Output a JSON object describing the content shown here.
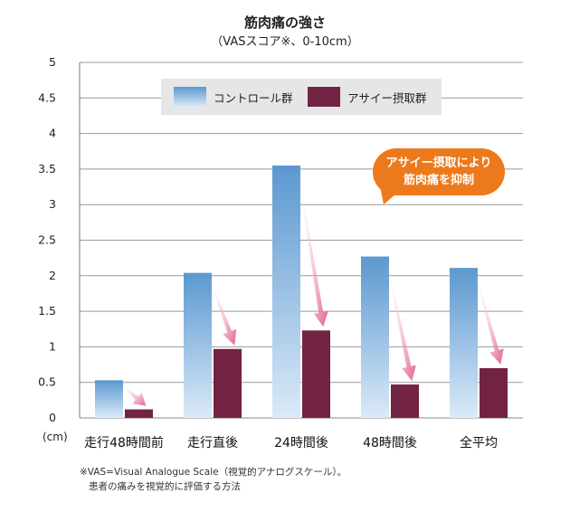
{
  "title": "筋肉痛の強さ",
  "subtitle": "（VASスコア※、0-10cm）",
  "unit_label": "(cm)",
  "footnote_1": "※VAS=Visual Analogue Scale（視覚的アナログスケール）。",
  "footnote_2": "患者の痛みを視覚的に評価する方法",
  "callout": {
    "line1": "アサイー摂取により",
    "line2": "筋肉痛を抑制"
  },
  "colors": {
    "control_top": "#5b98d0",
    "control_bottom": "#dbeaf8",
    "acai": "#722343",
    "arrow": "#e0608e",
    "callout": "#ec7a1c",
    "legend_bg": "#e6e6e6"
  },
  "chart_data": {
    "type": "bar",
    "categories": [
      "走行48時間前",
      "走行直後",
      "24時間後",
      "48時間後",
      "全平均"
    ],
    "series": [
      {
        "name": "コントロール群",
        "values": [
          0.53,
          2.04,
          3.55,
          2.27,
          2.11
        ]
      },
      {
        "name": "アサイー摂取群",
        "values": [
          0.12,
          0.97,
          1.23,
          0.47,
          0.7
        ]
      }
    ],
    "ylim": [
      0,
      5
    ],
    "yticks": [
      "0",
      "0.5",
      "1",
      "1.5",
      "2",
      "2.5",
      "3",
      "3.5",
      "4",
      "4.5",
      "5"
    ],
    "grid": true,
    "legend": "top-center"
  }
}
